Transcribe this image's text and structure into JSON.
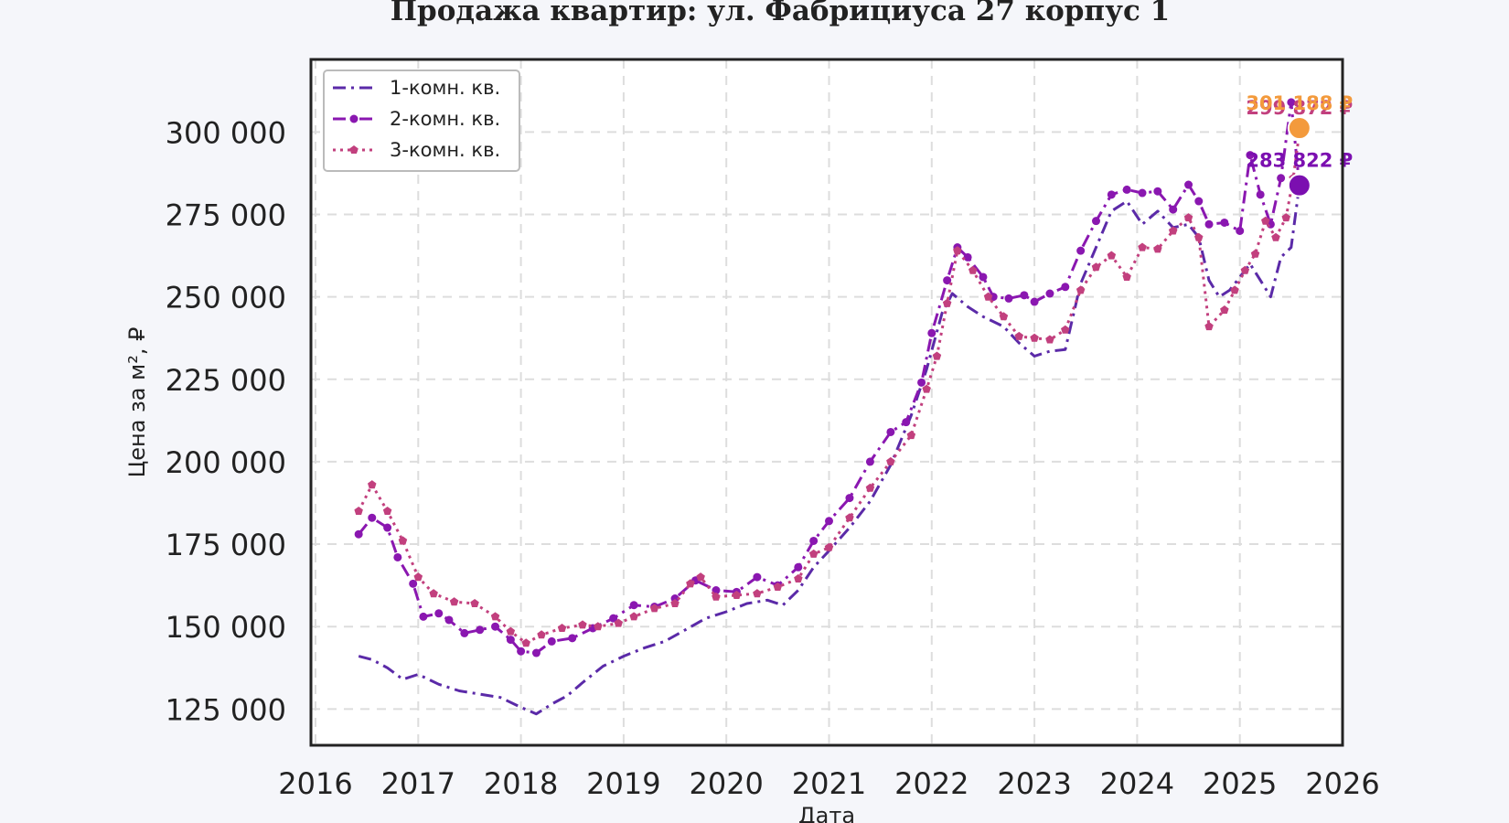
{
  "chart_data": {
    "type": "line",
    "title": "Продажа квартир: ул. Фабрициуса 27 корпус 1",
    "xlabel": "Дата",
    "ylabel": "Цена за м², ₽",
    "xlim": [
      2016,
      2026
    ],
    "ylim": [
      114000,
      322000
    ],
    "x_ticks": [
      "2016",
      "2017",
      "2018",
      "2019",
      "2020",
      "2021",
      "2022",
      "2023",
      "2024",
      "2025",
      "2026"
    ],
    "y_ticks": [
      "125 000",
      "150 000",
      "175 000",
      "200 000",
      "225 000",
      "250 000",
      "275 000",
      "300 000"
    ],
    "grid": true,
    "legend_position": "top-left",
    "series": [
      {
        "name": "1-комн. кв.",
        "color": "#5b2aa8",
        "line_style": "dashdot",
        "marker": "none",
        "points": [
          [
            2016.42,
            141000
          ],
          [
            2016.55,
            140000
          ],
          [
            2016.7,
            137500
          ],
          [
            2016.85,
            134000
          ],
          [
            2017.0,
            135500
          ],
          [
            2017.2,
            132500
          ],
          [
            2017.4,
            130500
          ],
          [
            2017.6,
            129500
          ],
          [
            2017.8,
            128500
          ],
          [
            2018.0,
            125500
          ],
          [
            2018.15,
            123500
          ],
          [
            2018.3,
            126500
          ],
          [
            2018.45,
            129000
          ],
          [
            2018.6,
            133000
          ],
          [
            2018.8,
            138000
          ],
          [
            2019.0,
            141000
          ],
          [
            2019.2,
            143500
          ],
          [
            2019.4,
            145500
          ],
          [
            2019.6,
            149000
          ],
          [
            2019.8,
            152500
          ],
          [
            2020.0,
            154500
          ],
          [
            2020.2,
            157000
          ],
          [
            2020.4,
            158000
          ],
          [
            2020.55,
            156500
          ],
          [
            2020.7,
            161000
          ],
          [
            2020.85,
            168000
          ],
          [
            2021.0,
            173000
          ],
          [
            2021.2,
            180000
          ],
          [
            2021.4,
            188000
          ],
          [
            2021.6,
            199000
          ],
          [
            2021.8,
            214000
          ],
          [
            2021.95,
            228000
          ],
          [
            2022.1,
            245000
          ],
          [
            2022.2,
            251000
          ],
          [
            2022.35,
            247000
          ],
          [
            2022.5,
            244000
          ],
          [
            2022.7,
            241000
          ],
          [
            2022.85,
            236000
          ],
          [
            2023.0,
            232000
          ],
          [
            2023.15,
            233500
          ],
          [
            2023.3,
            234000
          ],
          [
            2023.45,
            254000
          ],
          [
            2023.6,
            265000
          ],
          [
            2023.75,
            276000
          ],
          [
            2023.9,
            279000
          ],
          [
            2024.05,
            272000
          ],
          [
            2024.2,
            276000
          ],
          [
            2024.35,
            271000
          ],
          [
            2024.5,
            272000
          ],
          [
            2024.6,
            268000
          ],
          [
            2024.7,
            255000
          ],
          [
            2024.8,
            250000
          ],
          [
            2024.9,
            252000
          ],
          [
            2025.0,
            256000
          ],
          [
            2025.1,
            260000
          ],
          [
            2025.2,
            255000
          ],
          [
            2025.3,
            250000
          ],
          [
            2025.4,
            262000
          ],
          [
            2025.5,
            265000
          ],
          [
            2025.58,
            283822
          ]
        ]
      },
      {
        "name": "2-комн. кв.",
        "color": "#8a17b0",
        "line_style": "dashdot",
        "marker": "circle",
        "points": [
          [
            2016.42,
            178000
          ],
          [
            2016.55,
            183000
          ],
          [
            2016.7,
            180000
          ],
          [
            2016.8,
            171000
          ],
          [
            2016.95,
            163000
          ],
          [
            2017.05,
            153000
          ],
          [
            2017.2,
            154000
          ],
          [
            2017.3,
            152000
          ],
          [
            2017.45,
            148000
          ],
          [
            2017.6,
            149000
          ],
          [
            2017.75,
            150000
          ],
          [
            2017.9,
            146000
          ],
          [
            2018.0,
            142500
          ],
          [
            2018.15,
            142000
          ],
          [
            2018.3,
            145500
          ],
          [
            2018.5,
            146500
          ],
          [
            2018.7,
            149500
          ],
          [
            2018.9,
            152500
          ],
          [
            2019.1,
            156500
          ],
          [
            2019.3,
            156000
          ],
          [
            2019.5,
            158500
          ],
          [
            2019.7,
            164000
          ],
          [
            2019.9,
            161000
          ],
          [
            2020.1,
            160500
          ],
          [
            2020.3,
            165000
          ],
          [
            2020.5,
            162500
          ],
          [
            2020.7,
            168000
          ],
          [
            2020.85,
            176000
          ],
          [
            2021.0,
            182000
          ],
          [
            2021.2,
            189000
          ],
          [
            2021.4,
            200000
          ],
          [
            2021.6,
            209000
          ],
          [
            2021.75,
            212000
          ],
          [
            2021.9,
            224000
          ],
          [
            2022.0,
            239000
          ],
          [
            2022.15,
            255000
          ],
          [
            2022.25,
            265000
          ],
          [
            2022.35,
            262000
          ],
          [
            2022.5,
            256000
          ],
          [
            2022.6,
            250000
          ],
          [
            2022.75,
            249500
          ],
          [
            2022.9,
            250500
          ],
          [
            2023.0,
            248500
          ],
          [
            2023.15,
            251000
          ],
          [
            2023.3,
            253000
          ],
          [
            2023.45,
            264000
          ],
          [
            2023.6,
            273000
          ],
          [
            2023.75,
            281000
          ],
          [
            2023.9,
            282500
          ],
          [
            2024.05,
            281500
          ],
          [
            2024.2,
            282000
          ],
          [
            2024.35,
            276500
          ],
          [
            2024.5,
            284000
          ],
          [
            2024.6,
            279000
          ],
          [
            2024.7,
            272000
          ],
          [
            2024.85,
            272500
          ],
          [
            2025.0,
            270000
          ],
          [
            2025.1,
            293000
          ],
          [
            2025.2,
            281000
          ],
          [
            2025.3,
            272000
          ],
          [
            2025.4,
            286000
          ],
          [
            2025.5,
            309000
          ],
          [
            2025.58,
            283822
          ]
        ]
      },
      {
        "name": "3-комн. кв.",
        "color": "#c2407e",
        "line_style": "dotted",
        "marker": "pentagon",
        "points": [
          [
            2016.42,
            185000
          ],
          [
            2016.55,
            193000
          ],
          [
            2016.7,
            185000
          ],
          [
            2016.85,
            176000
          ],
          [
            2017.0,
            165000
          ],
          [
            2017.15,
            160000
          ],
          [
            2017.35,
            157500
          ],
          [
            2017.55,
            157000
          ],
          [
            2017.75,
            153000
          ],
          [
            2017.9,
            148500
          ],
          [
            2018.05,
            145000
          ],
          [
            2018.2,
            147500
          ],
          [
            2018.4,
            149500
          ],
          [
            2018.6,
            150500
          ],
          [
            2018.75,
            150000
          ],
          [
            2018.95,
            151000
          ],
          [
            2019.1,
            153000
          ],
          [
            2019.3,
            155500
          ],
          [
            2019.5,
            157000
          ],
          [
            2019.65,
            163000
          ],
          [
            2019.75,
            165000
          ],
          [
            2019.9,
            159000
          ],
          [
            2020.1,
            159500
          ],
          [
            2020.3,
            160000
          ],
          [
            2020.5,
            162000
          ],
          [
            2020.7,
            164500
          ],
          [
            2020.85,
            172000
          ],
          [
            2021.0,
            174000
          ],
          [
            2021.2,
            183000
          ],
          [
            2021.4,
            192000
          ],
          [
            2021.6,
            200000
          ],
          [
            2021.8,
            208000
          ],
          [
            2021.95,
            222000
          ],
          [
            2022.05,
            232000
          ],
          [
            2022.15,
            248000
          ],
          [
            2022.25,
            264000
          ],
          [
            2022.4,
            258000
          ],
          [
            2022.55,
            250000
          ],
          [
            2022.7,
            244000
          ],
          [
            2022.85,
            238000
          ],
          [
            2023.0,
            237500
          ],
          [
            2023.15,
            237000
          ],
          [
            2023.3,
            240000
          ],
          [
            2023.45,
            252000
          ],
          [
            2023.6,
            259000
          ],
          [
            2023.75,
            262500
          ],
          [
            2023.9,
            256000
          ],
          [
            2024.05,
            265000
          ],
          [
            2024.2,
            264500
          ],
          [
            2024.35,
            270000
          ],
          [
            2024.5,
            274000
          ],
          [
            2024.6,
            268000
          ],
          [
            2024.7,
            241000
          ],
          [
            2024.85,
            246000
          ],
          [
            2024.95,
            252000
          ],
          [
            2025.05,
            258000
          ],
          [
            2025.15,
            263000
          ],
          [
            2025.25,
            273000
          ],
          [
            2025.35,
            268000
          ],
          [
            2025.45,
            274000
          ],
          [
            2025.52,
            286000
          ],
          [
            2025.58,
            299872
          ]
        ]
      }
    ],
    "annotations": [
      {
        "text": "299 872 ₽",
        "x": 2025.58,
        "y": 299872,
        "color": "#c2407e"
      },
      {
        "text": "301 188 ₽",
        "x": 2025.58,
        "y": 301188,
        "color": "#f39a3c"
      },
      {
        "text": "283 822 ₽",
        "x": 2025.58,
        "y": 283822,
        "color": "#7b0fb0"
      }
    ],
    "highlight_points": [
      {
        "x": 2025.58,
        "y": 301188,
        "color": "#f39a3c"
      },
      {
        "x": 2025.58,
        "y": 283822,
        "color": "#7b0fb0"
      }
    ]
  }
}
